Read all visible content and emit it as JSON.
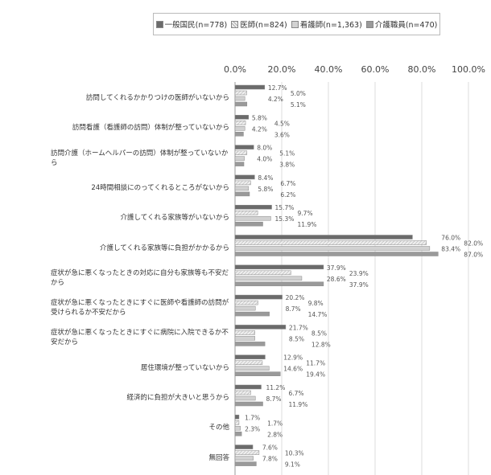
{
  "chart_data": {
    "type": "bar",
    "orientation": "horizontal",
    "title": "",
    "xlabel": "",
    "ylabel": "",
    "xlim": [
      0,
      100
    ],
    "x_ticks": [
      "0.0%",
      "20.0%",
      "40.0%",
      "60.0%",
      "80.0%",
      "100.0%"
    ],
    "grid": true,
    "legend_position": "top",
    "categories": [
      "訪問してくれるかかりつけの医師がいないから",
      "訪問看護（看護師の訪問）体制が整っていないから",
      "訪問介護（ホームヘルパーの訪問）体制が整っていないから",
      "24時間相談にのってくれるところがないから",
      "介護してくれる家族等がいないから",
      "介護してくれる家族等に負担がかかるから",
      "症状が急に悪くなったときの対応に自分も家族等も不安だから",
      "症状が急に悪くなったときにすぐに医師や看護師の訪問が受けられるか不安だから",
      "症状が急に悪くなったときにすぐに病院に入院できるか不安だから",
      "居住環境が整っていないから",
      "経済的に負担が大きいと思うから",
      "その他",
      "無回答"
    ],
    "series": [
      {
        "name": "一般国民(n=778)",
        "color": "#6b6b6b",
        "pattern": "solid",
        "values": [
          12.7,
          5.8,
          8.0,
          8.4,
          15.7,
          76.0,
          37.9,
          20.2,
          21.7,
          12.9,
          11.2,
          1.7,
          7.6
        ]
      },
      {
        "name": "医師(n=824)",
        "color": "#d8d8d8",
        "pattern": "hatch",
        "values": [
          5.0,
          4.5,
          5.1,
          6.7,
          9.7,
          82.0,
          23.9,
          9.8,
          8.5,
          11.7,
          6.7,
          1.7,
          10.3
        ]
      },
      {
        "name": "看護師(n=1,363)",
        "color": "#d2d2d2",
        "pattern": "solid",
        "values": [
          4.2,
          4.2,
          4.0,
          5.8,
          15.3,
          83.4,
          28.6,
          8.7,
          8.5,
          14.6,
          8.7,
          2.3,
          7.8
        ]
      },
      {
        "name": "介護職員(n=470)",
        "color": "#9a9a9a",
        "pattern": "solid",
        "values": [
          5.1,
          3.6,
          3.8,
          6.2,
          11.9,
          87.0,
          37.9,
          14.7,
          12.8,
          19.4,
          11.9,
          2.8,
          9.1
        ]
      }
    ]
  }
}
